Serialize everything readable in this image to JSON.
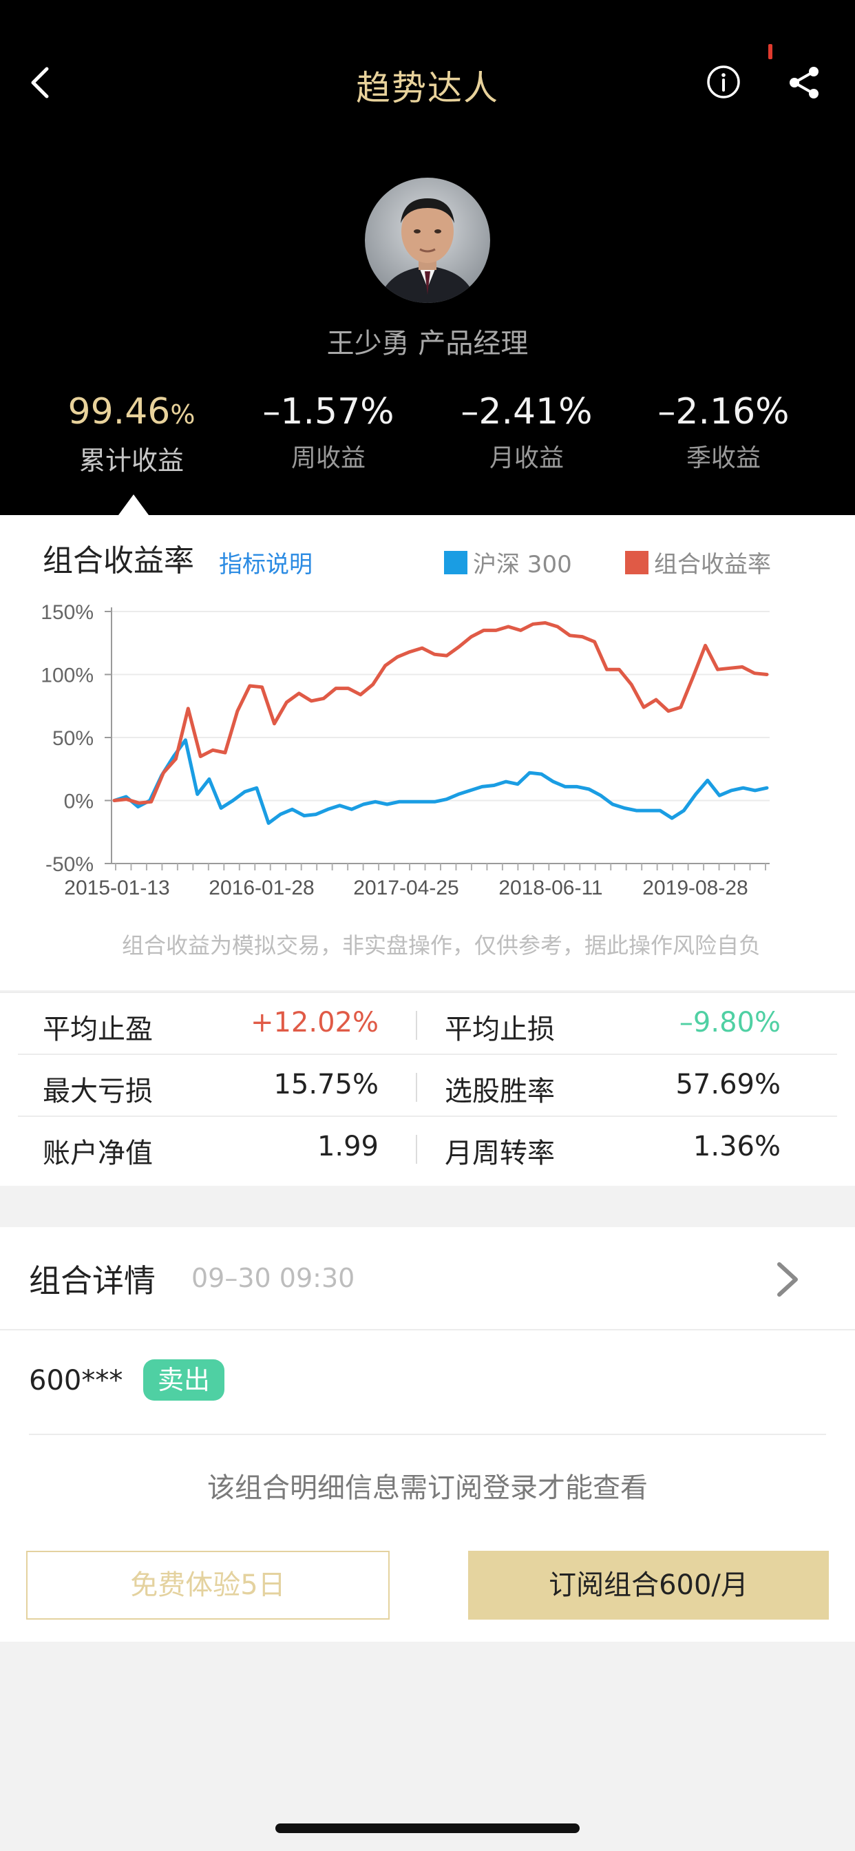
{
  "nav": {
    "title": "趋势达人"
  },
  "profile": {
    "manager_line": "王少勇 产品经理"
  },
  "stats": [
    {
      "value": "99.46",
      "unit": "%",
      "label": "累计收益"
    },
    {
      "value": "–1.57%",
      "label": "周收益"
    },
    {
      "value": "–2.41%",
      "label": "月收益"
    },
    {
      "value": "–2.16%",
      "label": "季收益"
    }
  ],
  "chart_section": {
    "title": "组合收益率",
    "info_link": "指标说明",
    "disclaimer": "组合收益为模拟交易，非实盘操作，仅供参考，据此操作风险自负"
  },
  "chart_data": {
    "type": "line",
    "x_tick_labels": [
      "2015-01-13",
      "2016-01-28",
      "2017-04-25",
      "2018-06-11",
      "2019-08-28"
    ],
    "y_tick_labels": [
      "150%",
      "100%",
      "50%",
      "0%",
      "-50%"
    ],
    "ylim": [
      -50,
      150
    ],
    "grid": true,
    "legend_position": "top-right",
    "series": [
      {
        "name": "沪深 300",
        "color": "#1a9de3",
        "values": [
          0,
          3,
          -5,
          0,
          20,
          35,
          48,
          5,
          17,
          -6,
          0,
          7,
          10,
          -18,
          -11,
          -7,
          -12,
          -11,
          -7,
          -4,
          -7,
          -3,
          -1,
          -3,
          -1,
          -1,
          -1,
          -1,
          1,
          5,
          8,
          11,
          12,
          15,
          13,
          22,
          21,
          15,
          11,
          11,
          9,
          4,
          -3,
          -6,
          -8,
          -8,
          -8,
          -14,
          -8,
          5,
          16,
          4,
          8,
          10,
          8,
          10
        ]
      },
      {
        "name": "组合收益率",
        "color": "#e05a46",
        "values": [
          0,
          1,
          -2,
          -1,
          22,
          33,
          73,
          35,
          40,
          38,
          71,
          91,
          90,
          61,
          78,
          85,
          79,
          81,
          89,
          89,
          84,
          92,
          107,
          114,
          118,
          121,
          116,
          115,
          122,
          130,
          135,
          135,
          138,
          135,
          140,
          141,
          138,
          131,
          130,
          126,
          104,
          104,
          92,
          74,
          80,
          71,
          74,
          98,
          123,
          104,
          105,
          106,
          101,
          100
        ]
      }
    ]
  },
  "metrics": [
    {
      "left_label": "平均止盈",
      "left_value": "+12.02%",
      "right_label": "平均止损",
      "right_value": "–9.80%"
    },
    {
      "left_label": "最大亏损",
      "left_value": "15.75%",
      "right_label": "选股胜率",
      "right_value": "57.69%"
    },
    {
      "left_label": "账户净值",
      "left_value": "1.99",
      "right_label": "月周转率",
      "right_value": "1.36%"
    }
  ],
  "details": {
    "title": "组合详情",
    "time": "09–30 09:30",
    "stock_code": "600***",
    "action_badge": "卖出",
    "notice": "该组合明细信息需订阅登录才能查看",
    "trial_button": "免费体验5日",
    "subscribe_button": "订阅组合600/月"
  }
}
